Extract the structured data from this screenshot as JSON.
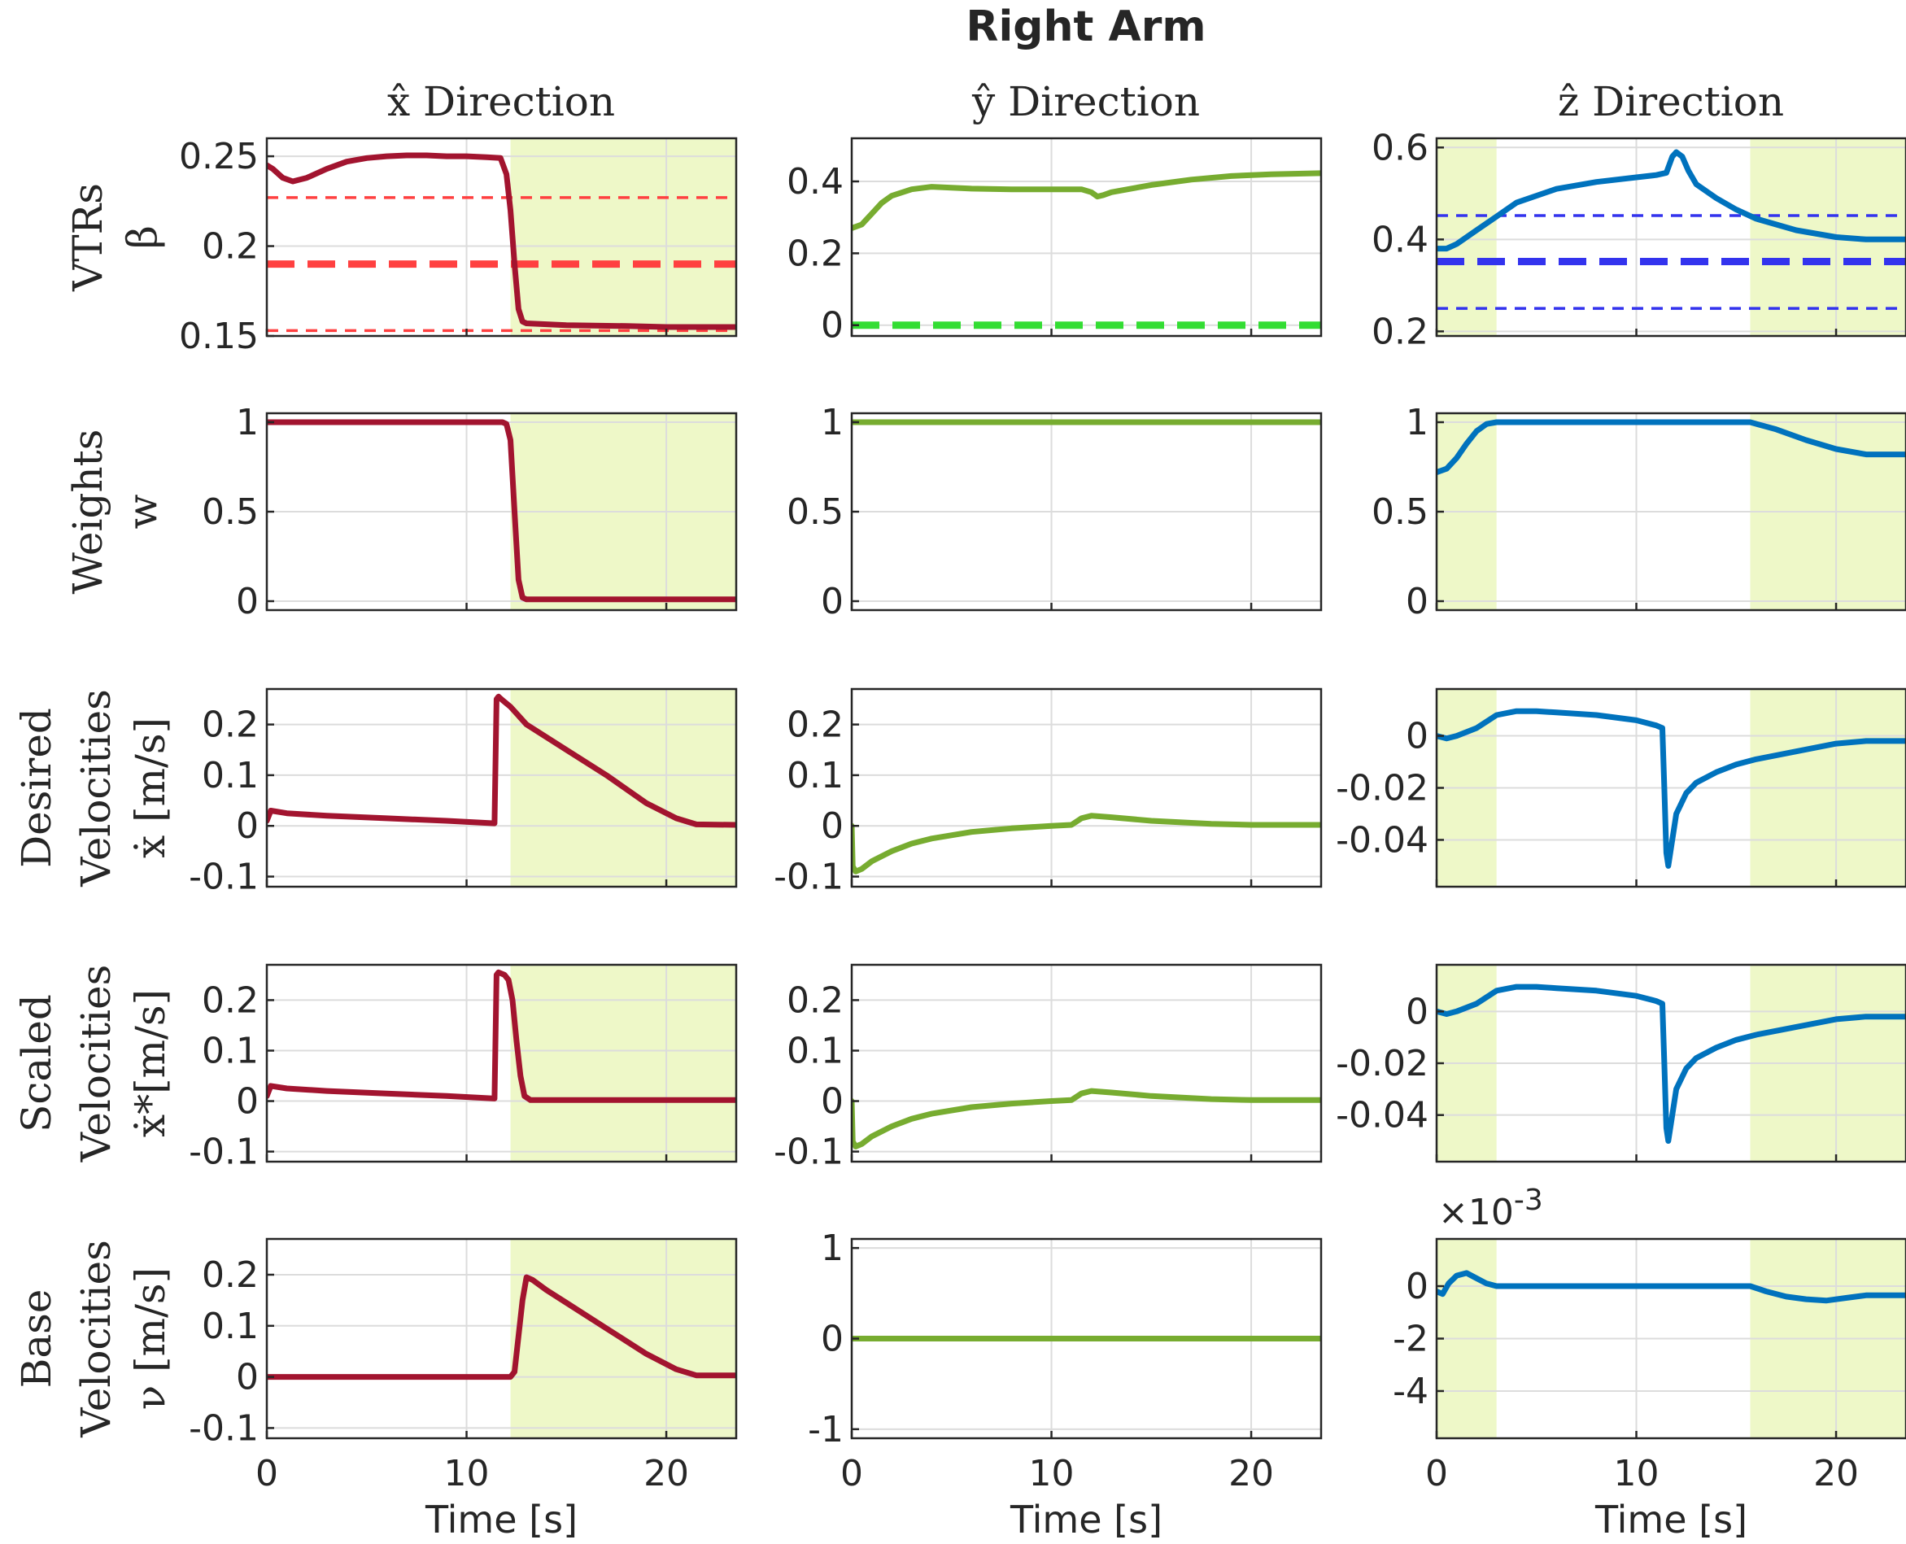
{
  "figure": {
    "title": "Right Arm"
  },
  "columns": [
    {
      "title": "x̂ Direction"
    },
    {
      "title": "ŷ Direction"
    },
    {
      "title": "ẑ Direction"
    }
  ],
  "rows": [
    {
      "ylabel_lines": [
        "VTRs",
        "β"
      ]
    },
    {
      "ylabel_lines": [
        "Weights",
        "w"
      ]
    },
    {
      "ylabel_lines": [
        "Desired",
        "Velocities",
        "ẋ [m/s]"
      ]
    },
    {
      "ylabel_lines": [
        "Scaled",
        "Velocities",
        "ẋ*[m/s]"
      ]
    },
    {
      "ylabel_lines": [
        "Base",
        "Velocities",
        "ν [m/s]"
      ]
    }
  ],
  "xlabel": "Time [s]",
  "colors": {
    "x": "#a2142f",
    "y": "#77ac30",
    "z": "#0072bd",
    "shade": "#eef8c8",
    "red_dashed": "#ff4040",
    "green_dashed": "#33dd33",
    "blue_dashed": "#3333ee"
  },
  "chart_data": [
    {
      "id": "vtr-x",
      "type": "line",
      "row": 0,
      "col": 0,
      "xlim": [
        0,
        23.5
      ],
      "ylim": [
        0.15,
        0.26
      ],
      "yticks": [
        0.15,
        0.2,
        0.25
      ],
      "ytick_labels": [
        "0.15",
        "0.2",
        "0.25"
      ],
      "xticks": [
        0,
        10,
        20
      ],
      "shaded": [
        [
          12.2,
          23.5
        ]
      ],
      "color": "x",
      "series": [
        {
          "x": [
            0,
            0.3,
            0.8,
            1.3,
            2,
            3,
            4,
            5,
            6,
            7,
            8,
            9,
            10,
            11,
            11.7,
            12,
            12.2,
            12.4,
            12.6,
            12.8,
            13,
            15,
            18,
            20,
            23.5
          ],
          "y": [
            0.245,
            0.243,
            0.238,
            0.236,
            0.238,
            0.243,
            0.247,
            0.249,
            0.25,
            0.2505,
            0.2505,
            0.25,
            0.25,
            0.2495,
            0.249,
            0.24,
            0.22,
            0.19,
            0.165,
            0.158,
            0.157,
            0.156,
            0.1555,
            0.155,
            0.155
          ]
        }
      ],
      "hlines": [
        {
          "y": 0.227,
          "color": "red_dashed",
          "thick": false
        },
        {
          "y": 0.19,
          "color": "red_dashed",
          "thick": true
        },
        {
          "y": 0.153,
          "color": "red_dashed",
          "thick": false
        }
      ]
    },
    {
      "id": "vtr-y",
      "type": "line",
      "row": 0,
      "col": 1,
      "xlim": [
        0,
        23.5
      ],
      "ylim": [
        -0.03,
        0.52
      ],
      "yticks": [
        0,
        0.2,
        0.4
      ],
      "ytick_labels": [
        "0",
        "0.2",
        "0.4"
      ],
      "xticks": [
        0,
        10,
        20
      ],
      "shaded": [],
      "color": "y",
      "series": [
        {
          "x": [
            0,
            0.5,
            1,
            1.5,
            2,
            3,
            4,
            6,
            8,
            10,
            11.5,
            12,
            12.3,
            12.6,
            13,
            15,
            17,
            19,
            21,
            23.5
          ],
          "y": [
            0.27,
            0.28,
            0.31,
            0.34,
            0.36,
            0.378,
            0.385,
            0.38,
            0.378,
            0.378,
            0.378,
            0.37,
            0.358,
            0.362,
            0.37,
            0.39,
            0.405,
            0.415,
            0.42,
            0.423
          ]
        }
      ],
      "hlines": [
        {
          "y": 0.0,
          "color": "green_dashed",
          "thick": true
        }
      ]
    },
    {
      "id": "vtr-z",
      "type": "line",
      "row": 0,
      "col": 2,
      "xlim": [
        0,
        23.5
      ],
      "ylim": [
        0.19,
        0.62
      ],
      "yticks": [
        0.2,
        0.4,
        0.6
      ],
      "ytick_labels": [
        "0.2",
        "0.4",
        "0.6"
      ],
      "xticks": [
        0,
        10,
        20
      ],
      "shaded": [
        [
          0,
          3
        ],
        [
          15.7,
          23.5
        ]
      ],
      "color": "z",
      "series": [
        {
          "x": [
            0,
            0.5,
            1,
            2,
            3,
            4,
            6,
            8,
            10,
            11,
            11.5,
            11.8,
            12,
            12.3,
            12.6,
            13,
            14,
            15,
            16,
            18,
            20,
            21.5,
            23.5
          ],
          "y": [
            0.38,
            0.38,
            0.39,
            0.42,
            0.45,
            0.48,
            0.51,
            0.525,
            0.535,
            0.54,
            0.545,
            0.58,
            0.59,
            0.58,
            0.55,
            0.52,
            0.49,
            0.465,
            0.445,
            0.42,
            0.405,
            0.4,
            0.4
          ]
        }
      ],
      "hlines": [
        {
          "y": 0.452,
          "color": "blue_dashed",
          "thick": false
        },
        {
          "y": 0.352,
          "color": "blue_dashed",
          "thick": true
        },
        {
          "y": 0.25,
          "color": "blue_dashed",
          "thick": false
        }
      ]
    },
    {
      "id": "w-x",
      "type": "line",
      "row": 1,
      "col": 0,
      "xlim": [
        0,
        23.5
      ],
      "ylim": [
        -0.05,
        1.05
      ],
      "yticks": [
        0,
        0.5,
        1
      ],
      "ytick_labels": [
        "0",
        "0.5",
        "1"
      ],
      "xticks": [
        0,
        10,
        20
      ],
      "shaded": [
        [
          12.2,
          23.5
        ]
      ],
      "color": "x",
      "series": [
        {
          "x": [
            0,
            11.8,
            12.0,
            12.2,
            12.4,
            12.6,
            12.8,
            13,
            23.5
          ],
          "y": [
            1,
            1,
            0.99,
            0.9,
            0.5,
            0.12,
            0.02,
            0.01,
            0.01
          ]
        }
      ],
      "hlines": []
    },
    {
      "id": "w-y",
      "type": "line",
      "row": 1,
      "col": 1,
      "xlim": [
        0,
        23.5
      ],
      "ylim": [
        -0.05,
        1.05
      ],
      "yticks": [
        0,
        0.5,
        1
      ],
      "ytick_labels": [
        "0",
        "0.5",
        "1"
      ],
      "xticks": [
        0,
        10,
        20
      ],
      "shaded": [],
      "color": "y",
      "series": [
        {
          "x": [
            0,
            23.5
          ],
          "y": [
            1,
            1
          ]
        }
      ],
      "hlines": []
    },
    {
      "id": "w-z",
      "type": "line",
      "row": 1,
      "col": 2,
      "xlim": [
        0,
        23.5
      ],
      "ylim": [
        -0.05,
        1.05
      ],
      "yticks": [
        0,
        0.5,
        1
      ],
      "ytick_labels": [
        "0",
        "0.5",
        "1"
      ],
      "xticks": [
        0,
        10,
        20
      ],
      "shaded": [
        [
          0,
          3
        ],
        [
          15.7,
          23.5
        ]
      ],
      "color": "z",
      "series": [
        {
          "x": [
            0,
            0.5,
            1,
            1.5,
            2,
            2.5,
            3,
            15.7,
            17,
            18.5,
            20,
            21.5,
            23.5
          ],
          "y": [
            0.72,
            0.74,
            0.8,
            0.88,
            0.95,
            0.99,
            1,
            1,
            0.96,
            0.9,
            0.85,
            0.82,
            0.82
          ]
        }
      ],
      "hlines": []
    },
    {
      "id": "dv-x",
      "type": "line",
      "row": 2,
      "col": 0,
      "xlim": [
        0,
        23.5
      ],
      "ylim": [
        -0.12,
        0.27
      ],
      "yticks": [
        -0.1,
        0,
        0.1,
        0.2
      ],
      "ytick_labels": [
        "-0.1",
        "0",
        "0.1",
        "0.2"
      ],
      "xticks": [
        0,
        10,
        20
      ],
      "shaded": [
        [
          12.2,
          23.5
        ]
      ],
      "color": "x",
      "series": [
        {
          "x": [
            0,
            0.2,
            1,
            3,
            6,
            9,
            11.4,
            11.5,
            11.6,
            11.8,
            12.2,
            13,
            15,
            17,
            19,
            20.5,
            21.5,
            23.5
          ],
          "y": [
            0.01,
            0.03,
            0.025,
            0.02,
            0.015,
            0.01,
            0.005,
            0.25,
            0.255,
            0.248,
            0.235,
            0.2,
            0.15,
            0.1,
            0.045,
            0.015,
            0.003,
            0.002
          ]
        }
      ],
      "hlines": []
    },
    {
      "id": "dv-y",
      "type": "line",
      "row": 2,
      "col": 1,
      "xlim": [
        0,
        23.5
      ],
      "ylim": [
        -0.12,
        0.27
      ],
      "yticks": [
        -0.1,
        0,
        0.1,
        0.2
      ],
      "ytick_labels": [
        "-0.1",
        "0",
        "0.1",
        "0.2"
      ],
      "xticks": [
        0,
        10,
        20
      ],
      "shaded": [],
      "color": "y",
      "series": [
        {
          "x": [
            0,
            0.05,
            0.2,
            0.5,
            1,
            2,
            3,
            4,
            6,
            8,
            10,
            11,
            11.5,
            12,
            13,
            15,
            18,
            20,
            23.5
          ],
          "y": [
            0,
            -0.08,
            -0.09,
            -0.085,
            -0.07,
            -0.05,
            -0.035,
            -0.025,
            -0.012,
            -0.005,
            0,
            0.002,
            0.015,
            0.02,
            0.017,
            0.01,
            0.004,
            0.002,
            0.002
          ]
        }
      ],
      "hlines": []
    },
    {
      "id": "dv-z",
      "type": "line",
      "row": 2,
      "col": 2,
      "xlim": [
        0,
        23.5
      ],
      "ylim": [
        -0.058,
        0.018
      ],
      "yticks": [
        -0.04,
        -0.02,
        0
      ],
      "ytick_labels": [
        "-0.04",
        "-0.02",
        "0"
      ],
      "xticks": [
        0,
        10,
        20
      ],
      "shaded": [
        [
          0,
          3
        ],
        [
          15.7,
          23.5
        ]
      ],
      "color": "z",
      "series": [
        {
          "x": [
            0,
            0.5,
            1,
            2,
            3,
            4,
            5,
            6,
            8,
            10,
            11,
            11.3,
            11.4,
            11.5,
            11.6,
            11.8,
            12,
            12.5,
            13,
            14,
            15,
            16,
            18,
            20,
            21.5,
            23.5
          ],
          "y": [
            0,
            -0.001,
            0.0,
            0.003,
            0.008,
            0.0095,
            0.0095,
            0.009,
            0.008,
            0.006,
            0.004,
            0.003,
            -0.02,
            -0.045,
            -0.05,
            -0.04,
            -0.03,
            -0.022,
            -0.018,
            -0.014,
            -0.011,
            -0.009,
            -0.006,
            -0.003,
            -0.002,
            -0.002
          ]
        }
      ],
      "hlines": []
    },
    {
      "id": "sv-x",
      "type": "line",
      "row": 3,
      "col": 0,
      "xlim": [
        0,
        23.5
      ],
      "ylim": [
        -0.12,
        0.27
      ],
      "yticks": [
        -0.1,
        0,
        0.1,
        0.2
      ],
      "ytick_labels": [
        "-0.1",
        "0",
        "0.1",
        "0.2"
      ],
      "xticks": [
        0,
        10,
        20
      ],
      "shaded": [
        [
          12.2,
          23.5
        ]
      ],
      "color": "x",
      "series": [
        {
          "x": [
            0,
            0.2,
            1,
            3,
            6,
            9,
            11.4,
            11.5,
            11.6,
            11.9,
            12.1,
            12.3,
            12.5,
            12.7,
            12.9,
            13.2,
            23.5
          ],
          "y": [
            0.01,
            0.03,
            0.025,
            0.02,
            0.015,
            0.01,
            0.005,
            0.25,
            0.255,
            0.25,
            0.24,
            0.2,
            0.12,
            0.05,
            0.01,
            0.002,
            0.002
          ]
        }
      ],
      "hlines": []
    },
    {
      "id": "sv-y",
      "type": "line",
      "row": 3,
      "col": 1,
      "xlim": [
        0,
        23.5
      ],
      "ylim": [
        -0.12,
        0.27
      ],
      "yticks": [
        -0.1,
        0,
        0.1,
        0.2
      ],
      "ytick_labels": [
        "-0.1",
        "0",
        "0.1",
        "0.2"
      ],
      "xticks": [
        0,
        10,
        20
      ],
      "shaded": [],
      "color": "y",
      "series": [
        {
          "x": [
            0,
            0.05,
            0.2,
            0.5,
            1,
            2,
            3,
            4,
            6,
            8,
            10,
            11,
            11.5,
            12,
            13,
            15,
            18,
            20,
            23.5
          ],
          "y": [
            0,
            -0.08,
            -0.09,
            -0.085,
            -0.07,
            -0.05,
            -0.035,
            -0.025,
            -0.012,
            -0.005,
            0,
            0.002,
            0.015,
            0.02,
            0.017,
            0.01,
            0.004,
            0.002,
            0.002
          ]
        }
      ],
      "hlines": []
    },
    {
      "id": "sv-z",
      "type": "line",
      "row": 3,
      "col": 2,
      "xlim": [
        0,
        23.5
      ],
      "ylim": [
        -0.058,
        0.018
      ],
      "yticks": [
        -0.04,
        -0.02,
        0
      ],
      "ytick_labels": [
        "-0.04",
        "-0.02",
        "0"
      ],
      "xticks": [
        0,
        10,
        20
      ],
      "shaded": [
        [
          0,
          3
        ],
        [
          15.7,
          23.5
        ]
      ],
      "color": "z",
      "series": [
        {
          "x": [
            0,
            0.5,
            1,
            2,
            3,
            4,
            5,
            6,
            8,
            10,
            11,
            11.3,
            11.4,
            11.5,
            11.6,
            11.8,
            12,
            12.5,
            13,
            14,
            15,
            16,
            18,
            20,
            21.5,
            23.5
          ],
          "y": [
            0,
            -0.001,
            0.0,
            0.003,
            0.008,
            0.0095,
            0.0095,
            0.009,
            0.008,
            0.006,
            0.004,
            0.003,
            -0.02,
            -0.045,
            -0.05,
            -0.04,
            -0.03,
            -0.022,
            -0.018,
            -0.014,
            -0.011,
            -0.009,
            -0.006,
            -0.003,
            -0.002,
            -0.002
          ]
        }
      ],
      "hlines": []
    },
    {
      "id": "bv-x",
      "type": "line",
      "row": 4,
      "col": 0,
      "xlim": [
        0,
        23.5
      ],
      "ylim": [
        -0.12,
        0.27
      ],
      "yticks": [
        -0.1,
        0,
        0.1,
        0.2
      ],
      "ytick_labels": [
        "-0.1",
        "0",
        "0.1",
        "0.2"
      ],
      "xticks": [
        0,
        10,
        20
      ],
      "xtick_labels": [
        "0",
        "10",
        "20"
      ],
      "shaded": [
        [
          12.2,
          23.5
        ]
      ],
      "color": "x",
      "series": [
        {
          "x": [
            0,
            12.2,
            12.4,
            12.6,
            12.8,
            13,
            13.3,
            14,
            15,
            17,
            19,
            20.5,
            21.5,
            23.5
          ],
          "y": [
            0,
            0,
            0.01,
            0.08,
            0.15,
            0.195,
            0.19,
            0.17,
            0.145,
            0.095,
            0.045,
            0.015,
            0.003,
            0.003
          ]
        }
      ],
      "hlines": []
    },
    {
      "id": "bv-y",
      "type": "line",
      "row": 4,
      "col": 1,
      "xlim": [
        0,
        23.5
      ],
      "ylim": [
        -1.1,
        1.1
      ],
      "yticks": [
        -1,
        0,
        1
      ],
      "ytick_labels": [
        "-1",
        "0",
        "1"
      ],
      "xticks": [
        0,
        10,
        20
      ],
      "xtick_labels": [
        "0",
        "10",
        "20"
      ],
      "shaded": [],
      "color": "y",
      "series": [
        {
          "x": [
            0,
            23.5
          ],
          "y": [
            0,
            0
          ]
        }
      ],
      "hlines": []
    },
    {
      "id": "bv-z",
      "type": "line",
      "row": 4,
      "col": 2,
      "xlim": [
        0,
        23.5
      ],
      "ylim": [
        -5.8,
        1.8
      ],
      "yticks": [
        -4,
        -2,
        0
      ],
      "ytick_labels": [
        "-4",
        "-2",
        "0"
      ],
      "xticks": [
        0,
        10,
        20
      ],
      "xtick_labels": [
        "0",
        "10",
        "20"
      ],
      "shaded": [
        [
          0,
          3
        ],
        [
          15.7,
          23.5
        ]
      ],
      "color": "z",
      "exponent_label": "×10",
      "exponent_power": "-3",
      "series": [
        {
          "x": [
            0,
            0.3,
            0.6,
            1,
            1.5,
            2,
            2.5,
            3,
            15.7,
            16.5,
            17.5,
            18.5,
            19.5,
            20.5,
            21.5,
            23.5
          ],
          "y": [
            -0.2,
            -0.3,
            0.1,
            0.4,
            0.5,
            0.3,
            0.1,
            0,
            0,
            -0.2,
            -0.4,
            -0.5,
            -0.55,
            -0.45,
            -0.35,
            -0.35
          ]
        }
      ],
      "hlines": []
    }
  ]
}
